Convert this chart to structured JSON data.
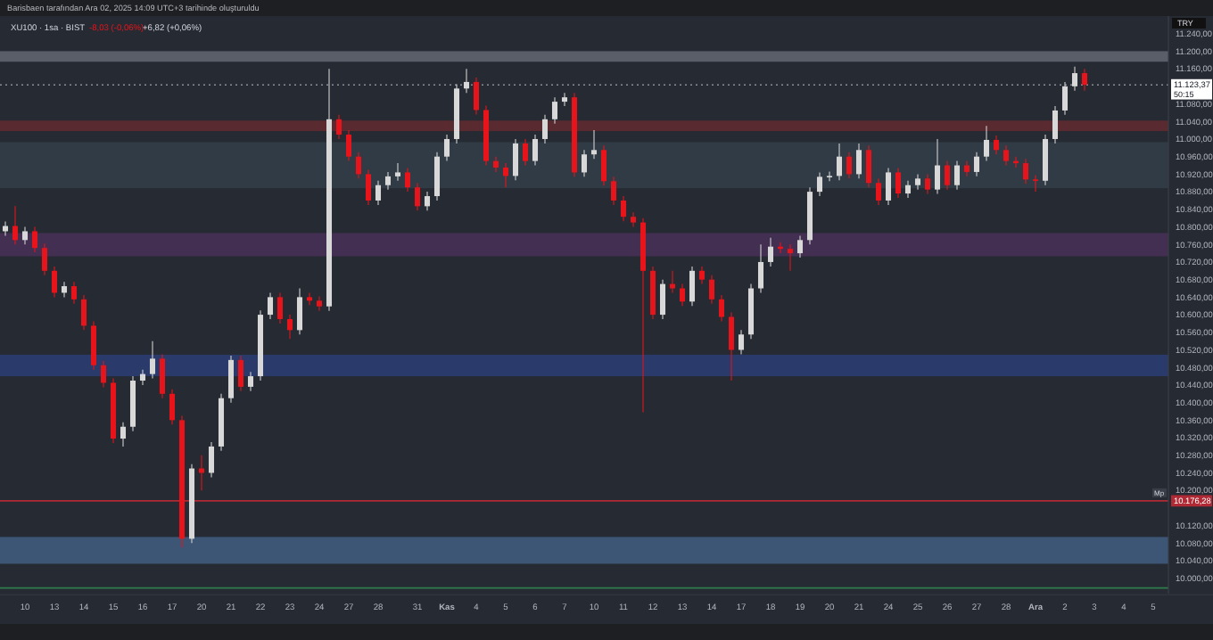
{
  "chart_data": {
    "type": "candlestick",
    "title": "XU100 · 1sa · BIST",
    "subtitle": "Barisbaen tarafından Ara 02, 2025 14:09 UTC+3 tarihinde oluşturuldu",
    "annotations": [
      "-8,03 (-0,06%)",
      "+6,82 (+0,06%)",
      "TRY",
      "50:15",
      "Mp"
    ],
    "colors": [
      "#d8d8d8",
      "#e8141b",
      "#d8d8d8",
      "#e8141b",
      "#e8141b",
      "#e8141b",
      "#d8d8d8",
      "#e8141b",
      "#e8141b",
      "#e8141b",
      "#e8141b",
      "#e8141b",
      "#d8d8d8",
      "#d8d8d8",
      "#d8d8d8",
      "#d8d8d8",
      "#e8141b",
      "#e8141b",
      "#e8141b",
      "#d8d8d8",
      "#e8141b",
      "#d8d8d8",
      "#d8d8d8",
      "#d8d8d8",
      "#e8141b",
      "#d8d8d8",
      "#d8d8d8",
      "#d8d8d8",
      "#e8141b",
      "#e8141b",
      "#d8d8d8",
      "#e8141b",
      "#e8141b",
      "#d8d8d8",
      "#e8141b",
      "#e8141b",
      "#e8141b",
      "#e8141b",
      "#d8d8d8",
      "#d8d8d8",
      "#d8d8d8",
      "#e8141b",
      "#e8141b",
      "#d8d8d8",
      "#d8d8d8",
      "#d8d8d8",
      "#d8d8d8",
      "#d8d8d8",
      "#e8141b",
      "#e8141b",
      "#e8141b",
      "#e8141b",
      "#d8d8d8",
      "#e8141b",
      "#d8d8d8",
      "#d8d8d8",
      "#d8d8d8",
      "#d8d8d8",
      "#e8141b",
      "#d8d8d8",
      "#d8d8d8",
      "#e8141b",
      "#e8141b",
      "#e8141b",
      "#e8141b",
      "#e8141b",
      "#e8141b",
      "#d8d8d8",
      "#e8141b",
      "#e8141b",
      "#d8d8d8",
      "#e8141b",
      "#e8141b",
      "#e8141b",
      "#e8141b",
      "#d8d8d8",
      "#d8d8d8",
      "#d8d8d8",
      "#d8d8d8",
      "#e8141b",
      "#e8141b",
      "#d8d8d8",
      "#d8d8d8",
      "#d8d8d8",
      "#d8d8d8",
      "#d8d8d8",
      "#e8141b",
      "#d8d8d8",
      "#e8141b",
      "#e8141b",
      "#d8d8d8",
      "#e8141b",
      "#d8d8d8",
      "#d8d8d8",
      "#e8141b",
      "#d8d8d8",
      "#e8141b",
      "#d8d8d8",
      "#e8141b",
      "#d8d8d8",
      "#d8d8d8",
      "#e8141b",
      "#e8141b",
      "#e8141b",
      "#e8141b",
      "#e8141b",
      "#d8d8d8",
      "#d8d8d8",
      "#d8d8d8",
      "#d8d8d8",
      "#e8141b",
      null,
      null,
      null,
      null,
      null,
      null,
      null,
      null
    ],
    "categories": [
      null,
      null,
      "10",
      null,
      null,
      "13",
      null,
      null,
      "14",
      null,
      null,
      "15",
      null,
      null,
      "16",
      null,
      null,
      "17",
      null,
      null,
      "20",
      null,
      null,
      "21",
      null,
      null,
      "22",
      null,
      null,
      "23",
      null,
      null,
      "24",
      null,
      null,
      "27",
      null,
      null,
      "28",
      null,
      null,
      null,
      "31",
      null,
      null,
      "Kas",
      null,
      null,
      "4",
      null,
      null,
      "5",
      null,
      null,
      "6",
      null,
      null,
      "7",
      null,
      null,
      "10",
      null,
      null,
      "11",
      null,
      null,
      "12",
      null,
      null,
      "13",
      null,
      null,
      "14",
      null,
      null,
      "17",
      null,
      null,
      "18",
      null,
      null,
      "19",
      null,
      null,
      "20",
      null,
      null,
      "21",
      null,
      null,
      "24",
      null,
      null,
      "25",
      null,
      null,
      "26",
      null,
      null,
      "27",
      null,
      null,
      "28",
      null,
      null,
      "Ara",
      null,
      null,
      "2",
      null,
      null,
      "3",
      null,
      null,
      "4",
      null,
      null,
      "5",
      null
    ],
    "ohlc": [
      [
        10790,
        10812,
        10780,
        10802
      ],
      [
        10802,
        10847,
        10760,
        10770
      ],
      [
        10770,
        10800,
        10760,
        10790
      ],
      [
        10790,
        10800,
        10742,
        10752
      ],
      [
        10752,
        10762,
        10690,
        10700
      ],
      [
        10700,
        10710,
        10640,
        10650
      ],
      [
        10650,
        10675,
        10640,
        10665
      ],
      [
        10665,
        10675,
        10625,
        10635
      ],
      [
        10635,
        10645,
        10565,
        10575
      ],
      [
        10575,
        10585,
        10475,
        10485
      ],
      [
        10485,
        10495,
        10435,
        10445
      ],
      [
        10445,
        10455,
        10308,
        10318
      ],
      [
        10318,
        10355,
        10300,
        10345
      ],
      [
        10345,
        10460,
        10335,
        10450
      ],
      [
        10450,
        10475,
        10440,
        10465
      ],
      [
        10465,
        10540,
        10455,
        10500
      ],
      [
        10500,
        10510,
        10410,
        10420
      ],
      [
        10420,
        10430,
        10350,
        10360
      ],
      [
        10360,
        10370,
        10070,
        10090
      ],
      [
        10090,
        10260,
        10080,
        10250
      ],
      [
        10250,
        10280,
        10200,
        10240
      ],
      [
        10240,
        10310,
        10230,
        10300
      ],
      [
        10300,
        10420,
        10290,
        10410
      ],
      [
        10410,
        10507,
        10400,
        10497
      ],
      [
        10497,
        10507,
        10426,
        10436
      ],
      [
        10436,
        10470,
        10426,
        10460
      ],
      [
        10460,
        10610,
        10450,
        10600
      ],
      [
        10600,
        10650,
        10590,
        10640
      ],
      [
        10640,
        10650,
        10580,
        10590
      ],
      [
        10590,
        10600,
        10545,
        10565
      ],
      [
        10565,
        10660,
        10555,
        10640
      ],
      [
        10640,
        10650,
        10622,
        10632
      ],
      [
        10632,
        10642,
        10609,
        10619
      ],
      [
        10619,
        11160,
        10609,
        11045
      ],
      [
        11045,
        11055,
        11000,
        11010
      ],
      [
        11010,
        11020,
        10950,
        10960
      ],
      [
        10960,
        10970,
        10910,
        10920
      ],
      [
        10920,
        10930,
        10850,
        10860
      ],
      [
        10860,
        10905,
        10850,
        10895
      ],
      [
        10895,
        10925,
        10885,
        10915
      ],
      [
        10915,
        10945,
        10905,
        10924
      ],
      [
        10924,
        10934,
        10880,
        10890
      ],
      [
        10890,
        10900,
        10837,
        10847
      ],
      [
        10847,
        10880,
        10837,
        10870
      ],
      [
        10870,
        10970,
        10860,
        10960
      ],
      [
        10960,
        11010,
        10950,
        11000
      ],
      [
        11000,
        11125,
        10990,
        11115
      ],
      [
        11115,
        11160,
        11105,
        11130
      ],
      [
        11130,
        11140,
        11056,
        11066
      ],
      [
        11066,
        11076,
        10940,
        10950
      ],
      [
        10950,
        10960,
        10925,
        10935
      ],
      [
        10935,
        10945,
        10890,
        10916
      ],
      [
        10916,
        11000,
        10906,
        10990
      ],
      [
        10990,
        11000,
        10940,
        10950
      ],
      [
        10950,
        11010,
        10940,
        11000
      ],
      [
        11000,
        11055,
        10990,
        11045
      ],
      [
        11045,
        11095,
        11035,
        11085
      ],
      [
        11085,
        11105,
        11075,
        11095
      ],
      [
        11095,
        11105,
        10914,
        10924
      ],
      [
        10924,
        10975,
        10914,
        10965
      ],
      [
        10965,
        11020,
        10955,
        10975
      ],
      [
        10975,
        10985,
        10894,
        10904
      ],
      [
        10904,
        10914,
        10850,
        10860
      ],
      [
        10860,
        10870,
        10813,
        10823
      ],
      [
        10823,
        10833,
        10800,
        10810
      ],
      [
        10810,
        10820,
        10378,
        10700
      ],
      [
        10700,
        10710,
        10590,
        10600
      ],
      [
        10600,
        10680,
        10590,
        10670
      ],
      [
        10670,
        10700,
        10650,
        10660
      ],
      [
        10660,
        10670,
        10620,
        10630
      ],
      [
        10630,
        10710,
        10620,
        10700
      ],
      [
        10700,
        10710,
        10670,
        10680
      ],
      [
        10680,
        10690,
        10625,
        10635
      ],
      [
        10635,
        10645,
        10585,
        10595
      ],
      [
        10595,
        10605,
        10450,
        10520
      ],
      [
        10520,
        10565,
        10510,
        10555
      ],
      [
        10555,
        10670,
        10545,
        10660
      ],
      [
        10660,
        10760,
        10650,
        10720
      ],
      [
        10720,
        10775,
        10710,
        10755
      ],
      [
        10755,
        10765,
        10740,
        10750
      ],
      [
        10750,
        10760,
        10700,
        10740
      ],
      [
        10740,
        10780,
        10730,
        10770
      ],
      [
        10770,
        10890,
        10760,
        10880
      ],
      [
        10880,
        10924,
        10870,
        10914
      ],
      [
        10914,
        10926,
        10904,
        10916
      ],
      [
        10916,
        10990,
        10906,
        10960
      ],
      [
        10960,
        10970,
        10910,
        10920
      ],
      [
        10920,
        10990,
        10910,
        10975
      ],
      [
        10975,
        10985,
        10890,
        10900
      ],
      [
        10900,
        10910,
        10850,
        10860
      ],
      [
        10860,
        10934,
        10850,
        10924
      ],
      [
        10924,
        10934,
        10866,
        10876
      ],
      [
        10876,
        10905,
        10866,
        10895
      ],
      [
        10895,
        10920,
        10885,
        10910
      ],
      [
        10910,
        10920,
        10875,
        10885
      ],
      [
        10885,
        11000,
        10875,
        10940
      ],
      [
        10940,
        10950,
        10885,
        10895
      ],
      [
        10895,
        10950,
        10885,
        10940
      ],
      [
        10940,
        10950,
        10915,
        10925
      ],
      [
        10925,
        10970,
        10915,
        10960
      ],
      [
        10960,
        11030,
        10950,
        10998
      ],
      [
        10998,
        11008,
        10965,
        10975
      ],
      [
        10975,
        10985,
        10940,
        10950
      ],
      [
        10950,
        10960,
        10935,
        10945
      ],
      [
        10945,
        10955,
        10898,
        10908
      ],
      [
        10908,
        10918,
        10880,
        10905
      ],
      [
        10905,
        11010,
        10895,
        11000
      ],
      [
        11000,
        11075,
        10990,
        11065
      ],
      [
        11065,
        11130,
        11055,
        11120
      ],
      [
        11120,
        11165,
        11110,
        11150
      ],
      [
        11150,
        11160,
        11110,
        11123.37
      ],
      null,
      null,
      null,
      null,
      null,
      null,
      null,
      null
    ],
    "ylim": [
      9965,
      11280
    ],
    "yticks": [
      {
        "value": 10000,
        "label": "10.000,00"
      },
      {
        "value": 10040,
        "label": "10.040,00"
      },
      {
        "value": 10080,
        "label": "10.080,00"
      },
      {
        "value": 10120,
        "label": "10.120,00"
      },
      {
        "value": 10200,
        "label": "10.200,00"
      },
      {
        "value": 10240,
        "label": "10.240,00"
      },
      {
        "value": 10280,
        "label": "10.280,00"
      },
      {
        "value": 10320,
        "label": "10.320,00"
      },
      {
        "value": 10360,
        "label": "10.360,00"
      },
      {
        "value": 10400,
        "label": "10.400,00"
      },
      {
        "value": 10440,
        "label": "10.440,00"
      },
      {
        "value": 10480,
        "label": "10.480,00"
      },
      {
        "value": 10520,
        "label": "10.520,00"
      },
      {
        "value": 10560,
        "label": "10.560,00"
      },
      {
        "value": 10600,
        "label": "10.600,00"
      },
      {
        "value": 10640,
        "label": "10.640,00"
      },
      {
        "value": 10680,
        "label": "10.680,00"
      },
      {
        "value": 10720,
        "label": "10.720,00"
      },
      {
        "value": 10760,
        "label": "10.760,00"
      },
      {
        "value": 10800,
        "label": "10.800,00"
      },
      {
        "value": 10840,
        "label": "10.840,00"
      },
      {
        "value": 10880,
        "label": "10.880,00"
      },
      {
        "value": 10920,
        "label": "10.920,00"
      },
      {
        "value": 10960,
        "label": "10.960,00"
      },
      {
        "value": 11000,
        "label": "11.000,00"
      },
      {
        "value": 11040,
        "label": "11.040,00"
      },
      {
        "value": 11080,
        "label": "11.080,00"
      },
      {
        "value": 11160,
        "label": "11.160,00"
      },
      {
        "value": 11200,
        "label": "11.200,00"
      },
      {
        "value": 11240,
        "label": "11.240,00"
      }
    ],
    "bands": [
      {
        "axis": "y",
        "from": 11176,
        "to": 11200,
        "color": "#5a5e69"
      },
      {
        "axis": "y",
        "from": 11018,
        "to": 11042,
        "color": "#5a2a31"
      },
      {
        "axis": "y",
        "from": 10888,
        "to": 10993,
        "color": "#303b45"
      },
      {
        "axis": "y",
        "from": 10733,
        "to": 10786,
        "color": "#432f52"
      },
      {
        "axis": "y",
        "from": 10460,
        "to": 10509,
        "color": "#2a3a6a"
      },
      {
        "axis": "y",
        "from": 10033,
        "to": 10094,
        "color": "#3d5676"
      }
    ],
    "ref_lines": [
      {
        "axis": "y",
        "value": 11123.37,
        "label": "11.123,37",
        "color": "#8a8d96",
        "line_style": "dotted"
      },
      {
        "axis": "y",
        "value": 10176.28,
        "label": "10.176,28",
        "color": "#b02a35",
        "line_style": "solid"
      },
      {
        "axis": "y",
        "value": 9978,
        "color": "#2f7d4c",
        "line_style": "solid"
      }
    ],
    "grid": false
  }
}
